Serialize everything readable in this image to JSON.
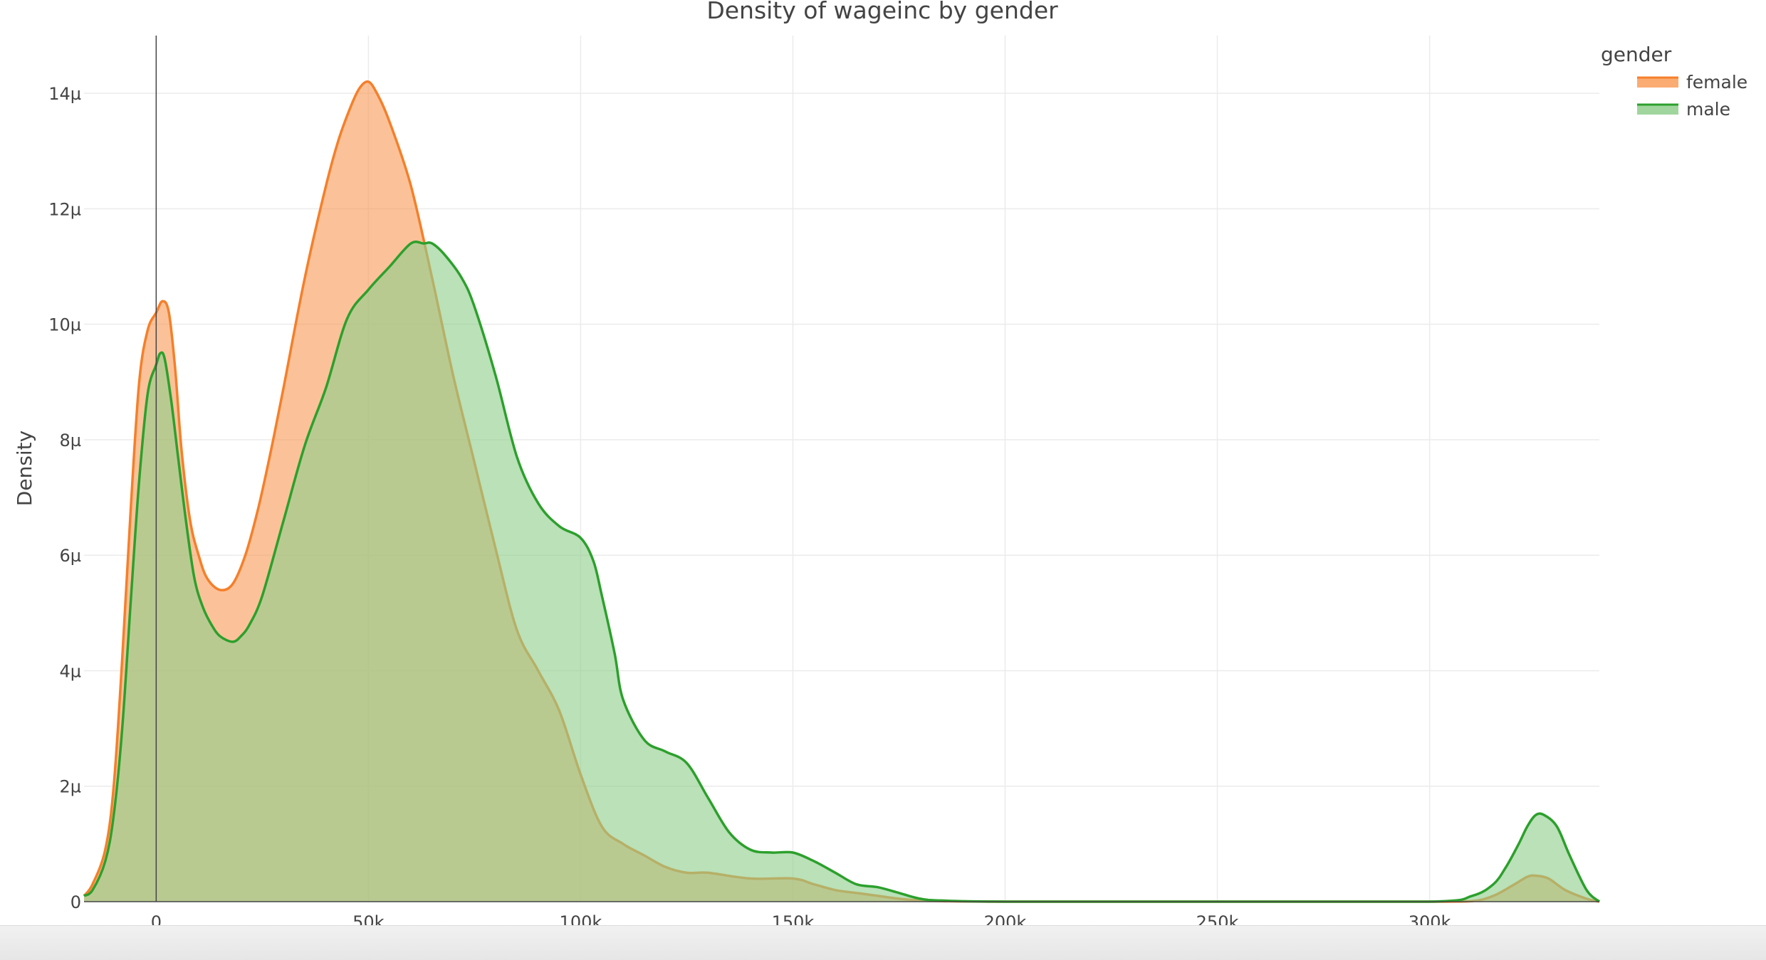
{
  "chart_data": {
    "type": "area",
    "title": "Density of wageinc by gender",
    "xlabel": "wageinc",
    "ylabel": "Density",
    "xlim": [
      -17000,
      340000
    ],
    "ylim": [
      0,
      1.5e-05
    ],
    "x_ticks": [
      {
        "value": 0,
        "label": "0"
      },
      {
        "value": 50000,
        "label": "50k"
      },
      {
        "value": 100000,
        "label": "100k"
      },
      {
        "value": 150000,
        "label": "150k"
      },
      {
        "value": 200000,
        "label": "200k"
      },
      {
        "value": 250000,
        "label": "250k"
      },
      {
        "value": 300000,
        "label": "300k"
      }
    ],
    "y_ticks": [
      {
        "value": 0,
        "label": "0"
      },
      {
        "value": 2e-06,
        "label": "2µ"
      },
      {
        "value": 4e-06,
        "label": "4µ"
      },
      {
        "value": 6e-06,
        "label": "6µ"
      },
      {
        "value": 8e-06,
        "label": "8µ"
      },
      {
        "value": 1e-05,
        "label": "10µ"
      },
      {
        "value": 1.2e-05,
        "label": "12µ"
      },
      {
        "value": 1.4e-05,
        "label": "14µ"
      }
    ],
    "grid": true,
    "legend": {
      "title": "gender",
      "placement": "top-right"
    },
    "series": [
      {
        "name": "female",
        "color": "#f57f2a",
        "fill": "#f99d5a",
        "x": [
          -17000,
          -15000,
          -12000,
          -10000,
          -8000,
          -6000,
          -4000,
          -2000,
          0,
          1500,
          3000,
          4500,
          6000,
          8000,
          10000,
          12000,
          15000,
          18000,
          21000,
          24000,
          27000,
          30000,
          35000,
          40000,
          43000,
          46000,
          48000,
          50000,
          52000,
          55000,
          60000,
          65000,
          70000,
          75000,
          80000,
          85000,
          90000,
          95000,
          100000,
          105000,
          110000,
          115000,
          120000,
          125000,
          130000,
          140000,
          150000,
          155000,
          160000,
          165000,
          170000,
          175000,
          180000,
          185000,
          200000,
          250000,
          300000,
          310000,
          315000,
          320000,
          323000,
          325000,
          328000,
          332000,
          337000,
          340000
        ],
        "y": [
          1e-07,
          3e-07,
          9e-07,
          2e-06,
          4.2e-06,
          6.8e-06,
          9e-06,
          9.9e-06,
          1.02e-05,
          1.04e-05,
          1.02e-05,
          9.2e-06,
          7.8e-06,
          6.6e-06,
          6e-06,
          5.6e-06,
          5.4e-06,
          5.5e-06,
          6e-06,
          6.8e-06,
          7.8e-06,
          8.9e-06,
          1.08e-05,
          1.24e-05,
          1.32e-05,
          1.38e-05,
          1.41e-05,
          1.42e-05,
          1.4e-05,
          1.35e-05,
          1.24e-05,
          1.08e-05,
          9.1e-06,
          7.6e-06,
          6.1e-06,
          4.7e-06,
          4e-06,
          3.3e-06,
          2.2e-06,
          1.3e-06,
          1e-06,
          8e-07,
          6e-07,
          5e-07,
          5e-07,
          4e-07,
          4e-07,
          3e-07,
          2e-07,
          1.5e-07,
          1e-07,
          5e-08,
          2e-08,
          1e-08,
          0,
          0,
          0,
          1e-08,
          1e-07,
          3e-07,
          4.3e-07,
          4.5e-07,
          4e-07,
          2e-07,
          5e-08,
          0
        ]
      },
      {
        "name": "male",
        "color": "#2ca02c",
        "fill": "#8fcf8c",
        "x": [
          -17000,
          -15000,
          -12000,
          -10000,
          -8000,
          -6000,
          -4000,
          -2000,
          0,
          1000,
          2000,
          3500,
          5000,
          7000,
          9000,
          11000,
          13000,
          15000,
          18000,
          20000,
          22000,
          25000,
          30000,
          35000,
          40000,
          45000,
          50000,
          55000,
          60000,
          63000,
          65000,
          68000,
          72000,
          75000,
          80000,
          85000,
          90000,
          95000,
          100000,
          103000,
          105000,
          108000,
          110000,
          115000,
          120000,
          125000,
          130000,
          135000,
          140000,
          145000,
          150000,
          155000,
          160000,
          165000,
          170000,
          175000,
          180000,
          185000,
          200000,
          250000,
          300000,
          310000,
          315000,
          318000,
          321000,
          323000,
          325000,
          327000,
          330000,
          333000,
          337000,
          340000
        ],
        "y": [
          1e-07,
          2e-07,
          7e-07,
          1.5e-06,
          3e-06,
          5.2e-06,
          7.3e-06,
          8.8e-06,
          9.3e-06,
          9.5e-06,
          9.4e-06,
          8.7e-06,
          7.8e-06,
          6.6e-06,
          5.6e-06,
          5.1e-06,
          4.8e-06,
          4.6e-06,
          4.5e-06,
          4.6e-06,
          4.8e-06,
          5.3e-06,
          6.6e-06,
          7.9e-06,
          8.9e-06,
          1.01e-05,
          1.06e-05,
          1.1e-05,
          1.14e-05,
          1.14e-05,
          1.14e-05,
          1.12e-05,
          1.08e-05,
          1.03e-05,
          9.1e-06,
          7.7e-06,
          6.9e-06,
          6.5e-06,
          6.3e-06,
          5.9e-06,
          5.3e-06,
          4.3e-06,
          3.5e-06,
          2.8e-06,
          2.6e-06,
          2.4e-06,
          1.8e-06,
          1.2e-06,
          9e-07,
          8.5e-07,
          8.5e-07,
          7e-07,
          5e-07,
          3e-07,
          2.5e-07,
          1.5e-07,
          5e-08,
          2e-08,
          0,
          0,
          0,
          1e-07,
          3e-07,
          6e-07,
          1e-06,
          1.3e-06,
          1.5e-06,
          1.5e-06,
          1.3e-06,
          8e-07,
          2e-07,
          0
        ]
      }
    ]
  }
}
